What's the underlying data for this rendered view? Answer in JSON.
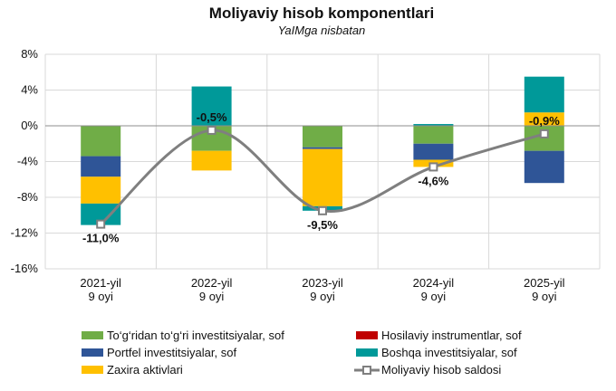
{
  "chart_data": {
    "type": "bar",
    "stacked": true,
    "title": "Moliyaviy hisob komponentlari",
    "subtitle": "YaIMga nisbatan",
    "categories": [
      [
        "2021-yil",
        "9 oyi"
      ],
      [
        "2022-yil",
        "9 oyi"
      ],
      [
        "2023-yil",
        "9 oyi"
      ],
      [
        "2024-yil",
        "9 oyi"
      ],
      [
        "2025-yil",
        "9 oyi"
      ]
    ],
    "ylim": [
      -16,
      8
    ],
    "yticks": [
      8,
      4,
      0,
      -4,
      -8,
      -12,
      -16
    ],
    "ytick_labels": [
      "8%",
      "4%",
      "0%",
      "-4%",
      "-8%",
      "-12%",
      "-16%"
    ],
    "series": [
      {
        "name": "To‘g‘ridan to‘g‘ri investitsiyalar, sof",
        "color": "#70AD47",
        "values": [
          -3.4,
          -2.8,
          -2.4,
          -2.0,
          -2.8
        ]
      },
      {
        "name": "Portfel investitsiyalar, sof",
        "color": "#2F5597",
        "values": [
          -2.3,
          0.0,
          -0.2,
          -1.8,
          -3.6
        ]
      },
      {
        "name": "Zaxira aktivlari",
        "color": "#FFC000",
        "values": [
          -3.0,
          -2.2,
          -6.4,
          -0.8,
          1.5
        ]
      },
      {
        "name": "Hosilaviy instrumentlar, sof",
        "color": "#C00000",
        "values": [
          0.0,
          0.0,
          0.0,
          0.0,
          0.0
        ]
      },
      {
        "name": "Boshqa investitsiyalar, sof",
        "color": "#009999",
        "values": [
          -2.4,
          4.4,
          -0.5,
          0.2,
          4.0
        ]
      }
    ],
    "line": {
      "name": "Moliyaviy hisob saldosi",
      "color": "#7F7F7F",
      "values": [
        -11.0,
        -0.5,
        -9.5,
        -4.6,
        -0.9
      ],
      "labels": [
        "-11,0%",
        "-0,5%",
        "-9,5%",
        "-4,6%",
        "-0,9%"
      ]
    },
    "legend": {
      "position": "bottom",
      "entries": [
        {
          "name": "To‘g‘ridan to‘g‘ri investitsiyalar, sof",
          "color": "#70AD47",
          "kind": "box"
        },
        {
          "name": "Hosilaviy instrumentlar, sof",
          "color": "#C00000",
          "kind": "box"
        },
        {
          "name": "Portfel investitsiyalar, sof",
          "color": "#2F5597",
          "kind": "box"
        },
        {
          "name": "Boshqa investitsiyalar, sof",
          "color": "#009999",
          "kind": "box"
        },
        {
          "name": "Zaxira aktivlari",
          "color": "#FFC000",
          "kind": "box"
        },
        {
          "name": "Moliyaviy hisob saldosi",
          "color": "#7F7F7F",
          "kind": "line"
        }
      ]
    },
    "grid": true
  }
}
